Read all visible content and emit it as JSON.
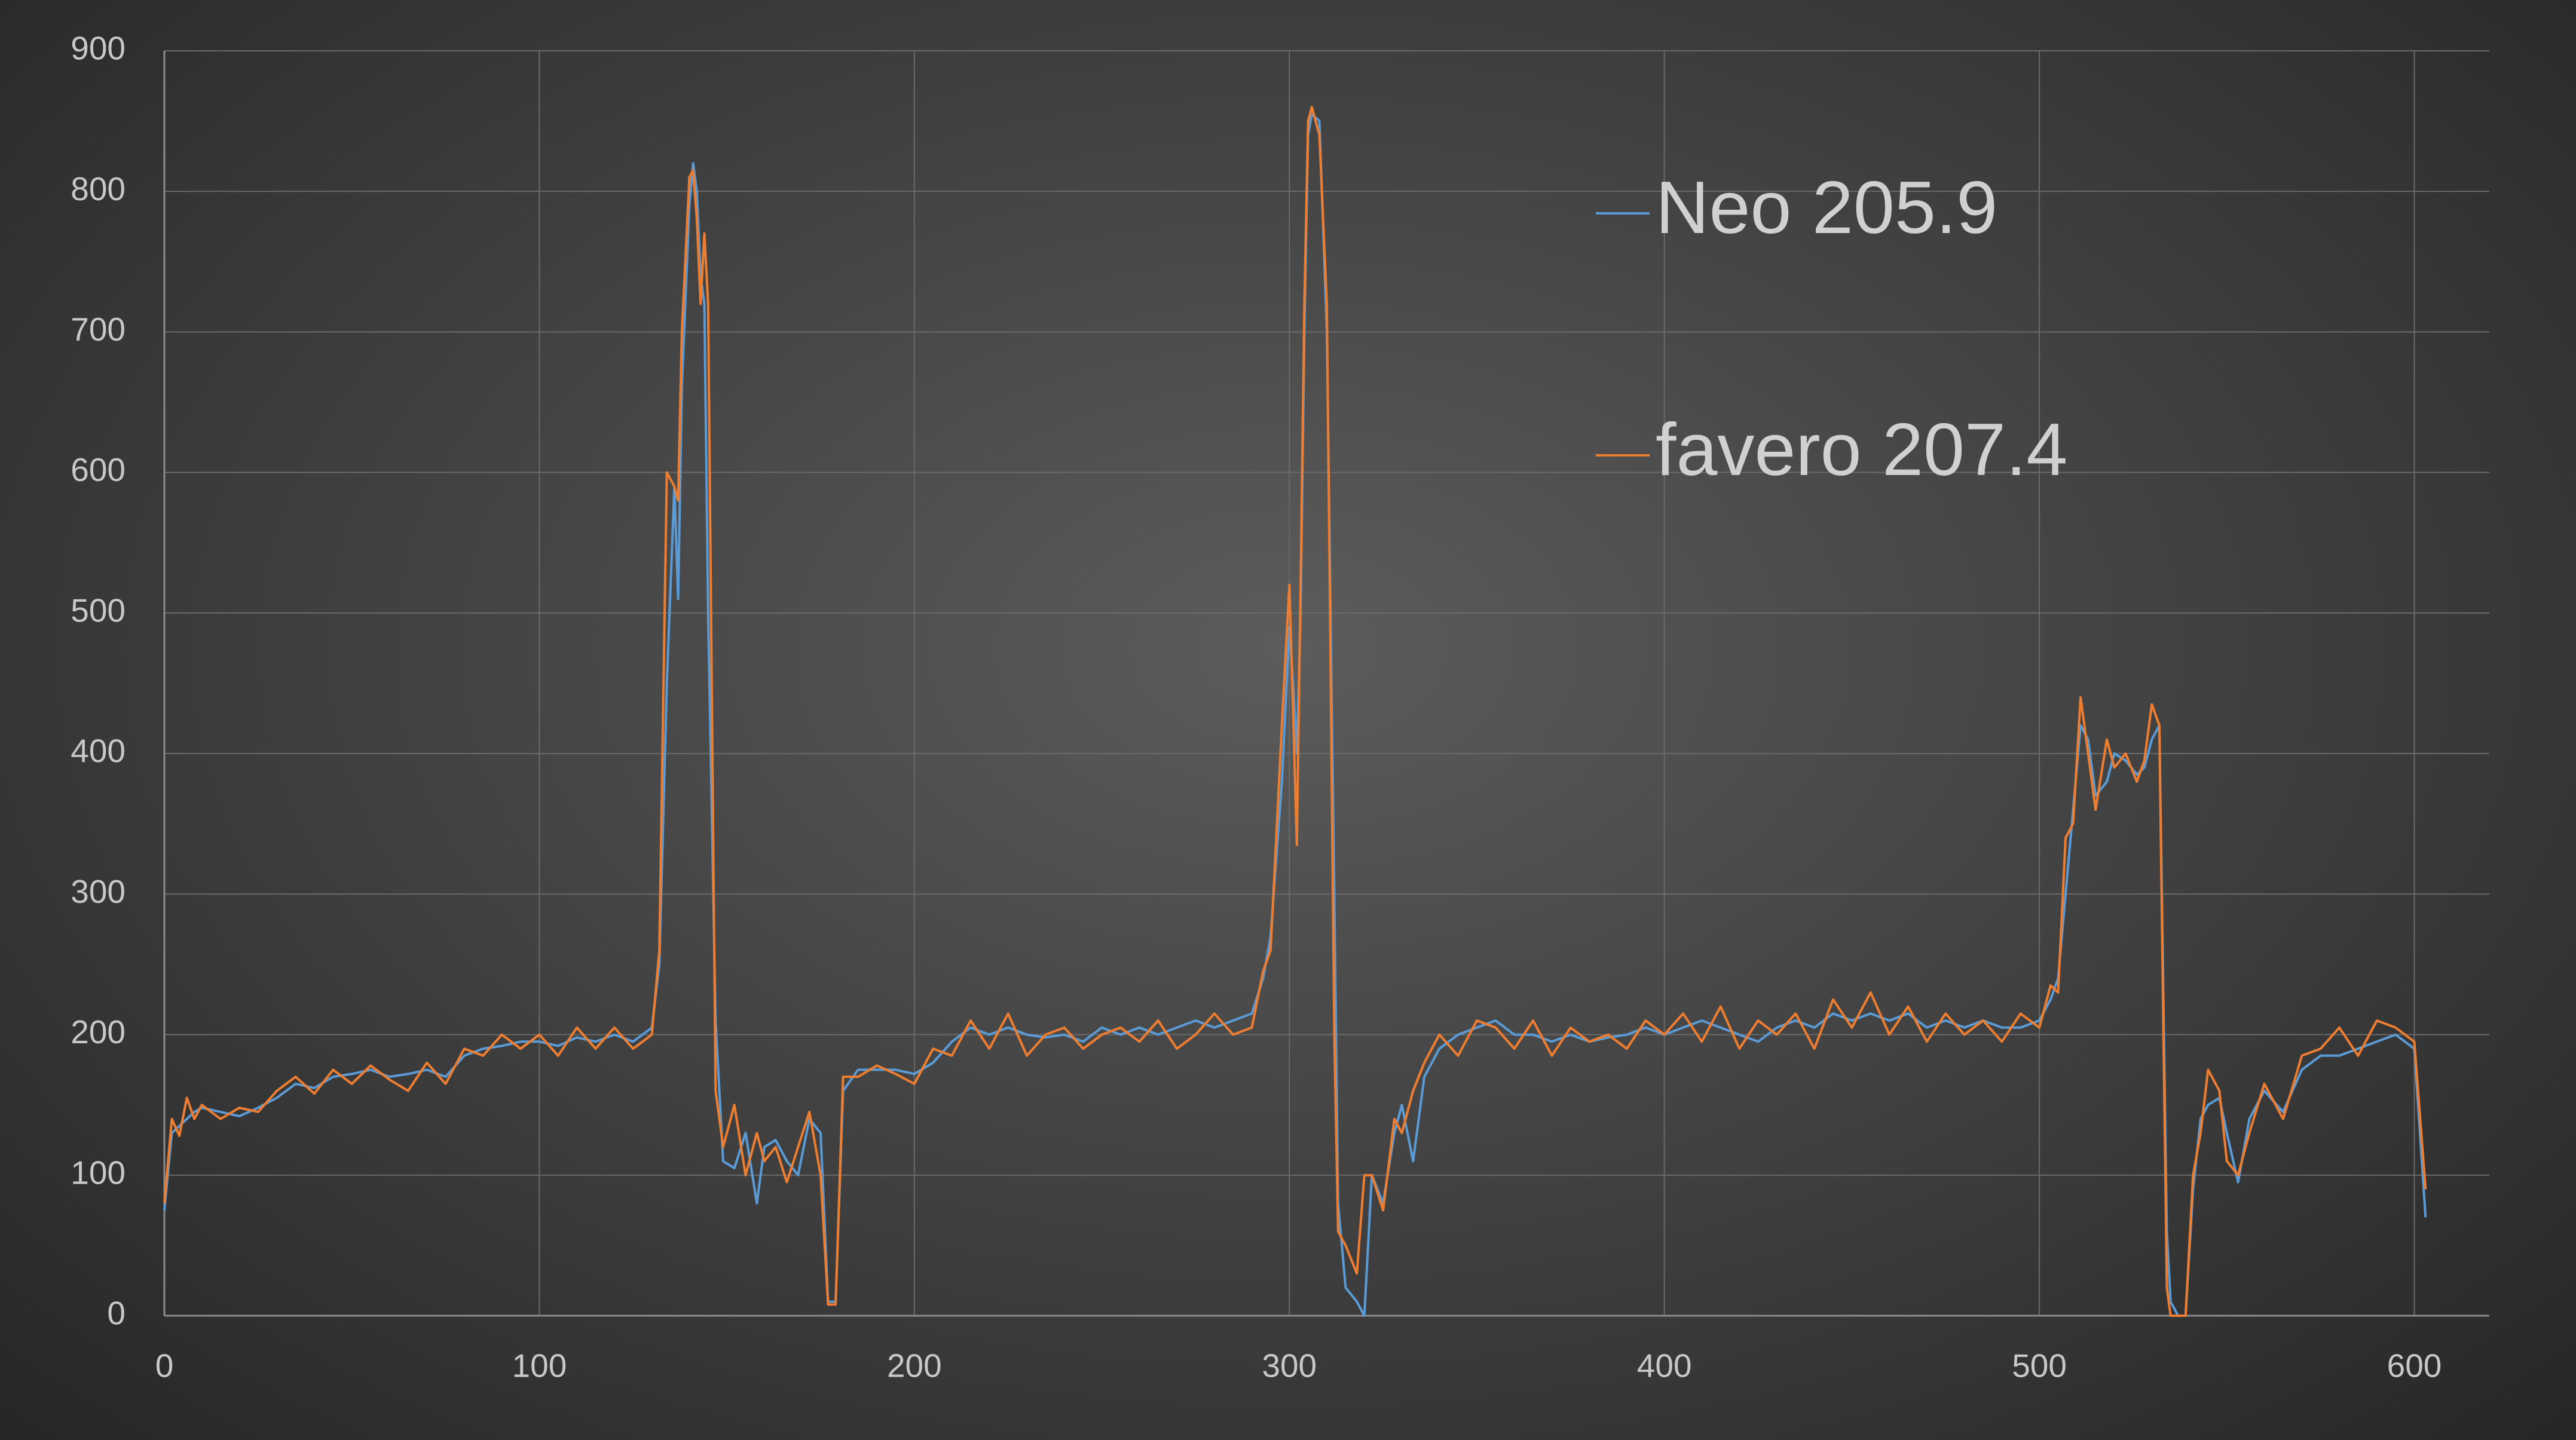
{
  "chart_data": {
    "type": "line",
    "x": [
      0,
      2,
      4,
      6,
      8,
      10,
      15,
      20,
      25,
      30,
      35,
      40,
      45,
      50,
      55,
      60,
      65,
      70,
      75,
      80,
      85,
      90,
      95,
      100,
      105,
      110,
      115,
      120,
      125,
      130,
      132,
      134,
      136,
      137,
      138,
      140,
      141,
      142,
      143,
      144,
      145,
      147,
      149,
      152,
      155,
      158,
      160,
      163,
      166,
      169,
      172,
      175,
      177,
      179,
      181,
      185,
      190,
      195,
      200,
      205,
      210,
      215,
      220,
      225,
      230,
      235,
      240,
      245,
      250,
      255,
      260,
      265,
      270,
      275,
      280,
      285,
      290,
      293,
      295,
      298,
      300,
      301,
      302,
      303,
      304,
      305,
      306,
      308,
      310,
      312,
      313,
      315,
      318,
      320,
      322,
      325,
      328,
      330,
      333,
      336,
      340,
      345,
      350,
      355,
      360,
      365,
      370,
      375,
      380,
      385,
      390,
      395,
      400,
      405,
      410,
      415,
      420,
      425,
      430,
      435,
      440,
      445,
      450,
      455,
      460,
      465,
      470,
      475,
      480,
      485,
      490,
      495,
      500,
      503,
      505,
      507,
      509,
      511,
      513,
      515,
      518,
      520,
      523,
      526,
      528,
      530,
      532,
      534,
      535,
      537,
      539,
      541,
      543,
      545,
      548,
      550,
      553,
      556,
      560,
      565,
      570,
      575,
      580,
      585,
      590,
      595,
      600,
      603
    ],
    "series": [
      {
        "name": "Neo 205.9",
        "color": "#5b9bd5",
        "values": [
          75,
          130,
          135,
          140,
          145,
          148,
          145,
          142,
          148,
          155,
          165,
          162,
          170,
          172,
          175,
          170,
          172,
          175,
          170,
          185,
          190,
          192,
          195,
          195,
          192,
          198,
          195,
          200,
          195,
          205,
          250,
          450,
          590,
          510,
          660,
          790,
          820,
          800,
          740,
          720,
          500,
          210,
          110,
          105,
          130,
          80,
          120,
          125,
          110,
          100,
          140,
          130,
          10,
          10,
          160,
          175,
          175,
          175,
          172,
          180,
          195,
          205,
          200,
          205,
          200,
          198,
          200,
          195,
          205,
          200,
          205,
          200,
          205,
          210,
          205,
          210,
          215,
          240,
          270,
          380,
          490,
          450,
          400,
          500,
          700,
          840,
          855,
          850,
          700,
          300,
          80,
          20,
          10,
          0,
          100,
          80,
          130,
          150,
          110,
          170,
          190,
          200,
          205,
          210,
          200,
          200,
          195,
          200,
          195,
          198,
          200,
          205,
          200,
          205,
          210,
          205,
          200,
          195,
          205,
          210,
          205,
          215,
          210,
          215,
          210,
          215,
          205,
          210,
          205,
          210,
          205,
          205,
          210,
          225,
          240,
          300,
          360,
          420,
          410,
          370,
          380,
          400,
          395,
          385,
          390,
          410,
          420,
          60,
          10,
          0,
          0,
          90,
          140,
          150,
          155,
          130,
          95,
          140,
          160,
          145,
          175,
          185,
          185,
          190,
          195,
          200,
          190,
          70
        ]
      },
      {
        "name": "favero 207.4",
        "color": "#ed7d31",
        "values": [
          80,
          140,
          128,
          155,
          140,
          150,
          140,
          148,
          145,
          160,
          170,
          158,
          175,
          165,
          178,
          168,
          160,
          180,
          165,
          190,
          185,
          200,
          190,
          200,
          185,
          205,
          190,
          205,
          190,
          200,
          260,
          600,
          590,
          580,
          700,
          810,
          815,
          780,
          720,
          770,
          720,
          160,
          120,
          150,
          100,
          130,
          110,
          120,
          95,
          120,
          145,
          100,
          8,
          8,
          170,
          170,
          178,
          172,
          165,
          190,
          185,
          210,
          190,
          215,
          185,
          200,
          205,
          190,
          200,
          205,
          195,
          210,
          190,
          200,
          215,
          200,
          205,
          245,
          260,
          420,
          520,
          430,
          335,
          520,
          720,
          850,
          860,
          840,
          720,
          200,
          60,
          50,
          30,
          100,
          100,
          75,
          140,
          130,
          160,
          180,
          200,
          185,
          210,
          205,
          190,
          210,
          185,
          205,
          195,
          200,
          190,
          210,
          200,
          215,
          195,
          220,
          190,
          210,
          200,
          215,
          190,
          225,
          205,
          230,
          200,
          220,
          195,
          215,
          200,
          210,
          195,
          215,
          205,
          235,
          230,
          340,
          350,
          440,
          400,
          360,
          410,
          390,
          400,
          380,
          395,
          435,
          420,
          20,
          0,
          0,
          0,
          100,
          130,
          175,
          160,
          110,
          100,
          130,
          165,
          140,
          185,
          190,
          205,
          185,
          210,
          205,
          195,
          90
        ]
      }
    ],
    "xlim": [
      0,
      620
    ],
    "xticks": [
      0,
      100,
      200,
      300,
      400,
      500,
      600
    ],
    "ylim": [
      0,
      900
    ],
    "yticks": [
      0,
      100,
      200,
      300,
      400,
      500,
      600,
      700,
      800,
      900
    ],
    "grid": true,
    "legend": "upper-right"
  }
}
